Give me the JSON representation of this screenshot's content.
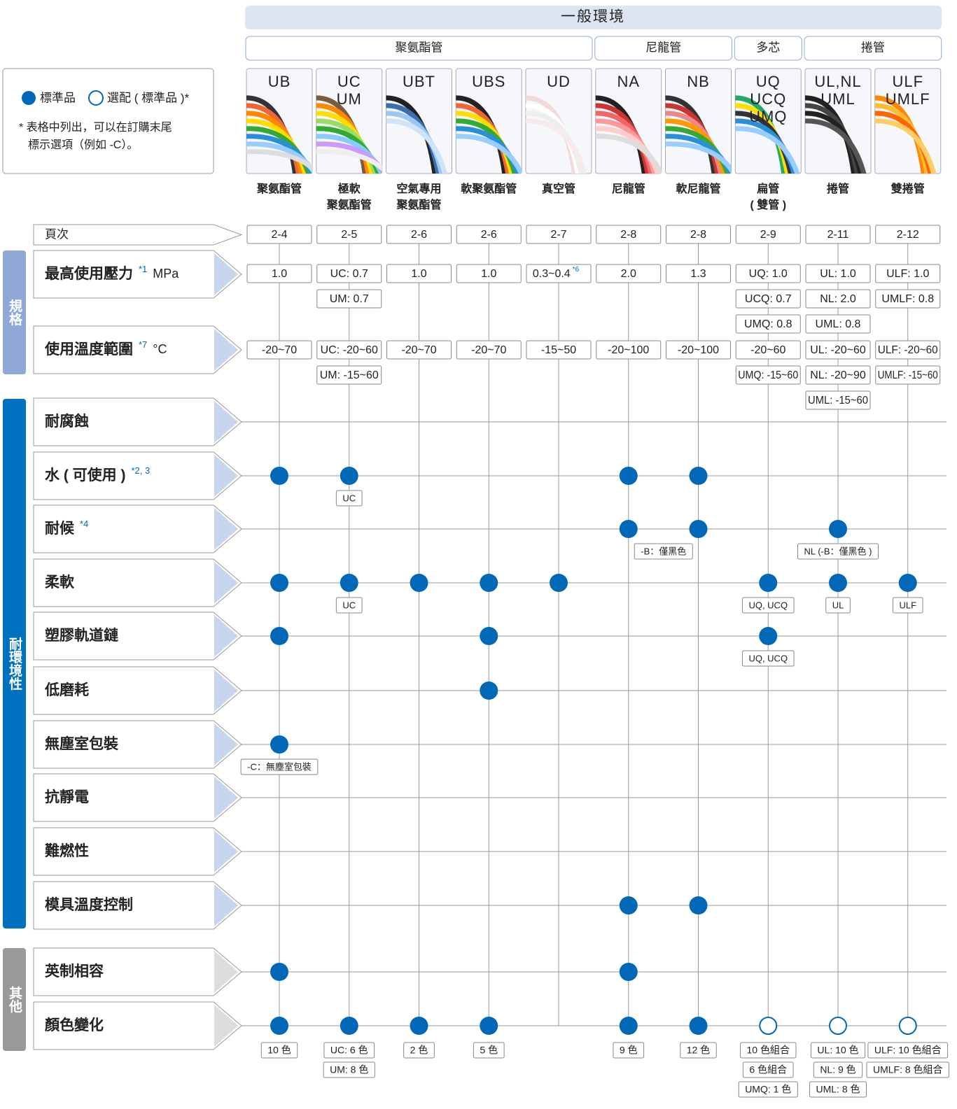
{
  "header": {
    "title": "一般環境"
  },
  "groups": [
    "聚氨酯管",
    "尼龍管",
    "多芯",
    "捲管"
  ],
  "legend": {
    "standard": "標準品",
    "optional": "選配 ( 標準品 )*",
    "note_lines": [
      "* 表格中列出，可以在訂購末尾",
      "標示選項（例如 -C）。"
    ]
  },
  "products": [
    {
      "code": [
        "UB"
      ],
      "name": [
        "聚氨酯管"
      ],
      "page": "2-4"
    },
    {
      "code": [
        "UC",
        "UM"
      ],
      "name": [
        "極軟",
        "聚氨酯管"
      ],
      "page": "2-5"
    },
    {
      "code": [
        "UBT"
      ],
      "name": [
        "空氣專用",
        "聚氨酯管"
      ],
      "page": "2-6"
    },
    {
      "code": [
        "UBS"
      ],
      "name": [
        "軟聚氨酯管"
      ],
      "page": "2-6"
    },
    {
      "code": [
        "UD"
      ],
      "name": [
        "真空管"
      ],
      "page": "2-7"
    },
    {
      "code": [
        "NA"
      ],
      "name": [
        "尼龍管"
      ],
      "page": "2-8"
    },
    {
      "code": [
        "NB"
      ],
      "name": [
        "軟尼龍管"
      ],
      "page": "2-8"
    },
    {
      "code": [
        "UQ",
        "UCQ",
        "UMQ"
      ],
      "name": [
        "扁管",
        "( 雙管 )"
      ],
      "page": "2-9"
    },
    {
      "code": [
        "UL,NL",
        "UML"
      ],
      "name": [
        "捲管"
      ],
      "page": "2-11"
    },
    {
      "code": [
        "ULF",
        "UMLF"
      ],
      "name": [
        "雙捲管"
      ],
      "page": "2-12"
    }
  ],
  "page_row": {
    "label": "頁次"
  },
  "categories": [
    {
      "label": "規格"
    },
    {
      "label": "耐環境性"
    },
    {
      "label": "其他"
    }
  ],
  "spec_rows": [
    {
      "label": "最高使用壓力",
      "note": "*1",
      "unit": "MPa",
      "cells": [
        [
          "1.0"
        ],
        [
          "UC: 0.7",
          "UM: 0.7"
        ],
        [
          "1.0"
        ],
        [
          "1.0"
        ],
        [
          {
            "text": "0.3~0.4",
            "note": "*6"
          }
        ],
        [
          "2.0"
        ],
        [
          "1.3"
        ],
        [
          "UQ: 1.0",
          "UCQ: 0.7",
          "UMQ: 0.8"
        ],
        [
          "UL: 1.0",
          "NL: 2.0",
          "UML: 0.8"
        ],
        [
          "ULF: 1.0",
          "UMLF: 0.8"
        ]
      ]
    },
    {
      "label": "使用溫度範圍",
      "note": "*7",
      "unit": "°C",
      "cells": [
        [
          "-20~70"
        ],
        [
          "UC: -20~60",
          "UM: -15~60"
        ],
        [
          "-20~70"
        ],
        [
          "-20~70"
        ],
        [
          "-15~50"
        ],
        [
          "-20~100"
        ],
        [
          "-20~100"
        ],
        [
          "-20~60",
          "UMQ: -15~60"
        ],
        [
          "UL: -20~60",
          "NL: -20~90",
          "UML: -15~60"
        ],
        [
          "ULF: -20~60",
          "UMLF: -15~60"
        ]
      ]
    }
  ],
  "feature_rows": [
    {
      "label": "耐腐蝕",
      "marks": [
        null,
        null,
        null,
        null,
        null,
        null,
        null,
        null,
        null,
        null
      ],
      "notes": [
        null,
        null,
        null,
        null,
        null,
        null,
        null,
        null,
        null,
        null
      ]
    },
    {
      "label": "水 ( 可使用 )",
      "note": "*2, 3",
      "marks": [
        "std",
        "std",
        null,
        null,
        null,
        "std",
        "std",
        null,
        null,
        null
      ],
      "notes": [
        null,
        "UC",
        null,
        null,
        null,
        null,
        null,
        null,
        null,
        null
      ]
    },
    {
      "label": "耐候",
      "note": "*4",
      "marks": [
        null,
        null,
        null,
        null,
        null,
        "std",
        "std",
        null,
        "std",
        null
      ],
      "notes": [
        null,
        null,
        null,
        null,
        null,
        "-B：僅黑色",
        null,
        null,
        "NL (-B：僅黑色 )",
        null
      ]
    },
    {
      "label": "柔軟",
      "marks": [
        "std",
        "std",
        "std",
        "std",
        "std",
        null,
        null,
        "std",
        "std",
        "std"
      ],
      "notes": [
        null,
        "UC",
        null,
        null,
        null,
        null,
        null,
        "UQ, UCQ",
        "UL",
        "ULF"
      ]
    },
    {
      "label": "塑膠軌道鏈",
      "marks": [
        "std",
        null,
        null,
        "std",
        null,
        null,
        null,
        "std",
        null,
        null
      ],
      "notes": [
        null,
        null,
        null,
        null,
        null,
        null,
        null,
        "UQ, UCQ",
        null,
        null
      ]
    },
    {
      "label": "低磨耗",
      "marks": [
        null,
        null,
        null,
        "std",
        null,
        null,
        null,
        null,
        null,
        null
      ],
      "notes": [
        null,
        null,
        null,
        null,
        null,
        null,
        null,
        null,
        null,
        null
      ]
    },
    {
      "label": "無塵室包裝",
      "marks": [
        "std",
        null,
        null,
        null,
        null,
        null,
        null,
        null,
        null,
        null
      ],
      "notes": [
        "-C：無塵室包裝",
        null,
        null,
        null,
        null,
        null,
        null,
        null,
        null,
        null
      ]
    },
    {
      "label": "抗靜電",
      "marks": [
        null,
        null,
        null,
        null,
        null,
        null,
        null,
        null,
        null,
        null
      ],
      "notes": [
        null,
        null,
        null,
        null,
        null,
        null,
        null,
        null,
        null,
        null
      ]
    },
    {
      "label": "難燃性",
      "marks": [
        null,
        null,
        null,
        null,
        null,
        null,
        null,
        null,
        null,
        null
      ],
      "notes": [
        null,
        null,
        null,
        null,
        null,
        null,
        null,
        null,
        null,
        null
      ]
    },
    {
      "label": "模具溫度控制",
      "marks": [
        null,
        null,
        null,
        null,
        null,
        "std",
        "std",
        null,
        null,
        null
      ],
      "notes": [
        null,
        null,
        null,
        null,
        null,
        null,
        null,
        null,
        null,
        null
      ]
    }
  ],
  "other_rows": [
    {
      "label": "英制相容",
      "marks": [
        "std",
        null,
        null,
        null,
        null,
        "std",
        null,
        null,
        null,
        null
      ],
      "notes": [
        null,
        null,
        null,
        null,
        null,
        null,
        null,
        null,
        null,
        null
      ]
    },
    {
      "label": "顏色變化",
      "marks": [
        "std",
        "std",
        "std",
        "std",
        null,
        "std",
        "std",
        "opt",
        "opt",
        "opt"
      ],
      "notes": [
        [
          "10 色"
        ],
        [
          "UC: 6 色",
          "UM: 8 色"
        ],
        [
          "2 色"
        ],
        [
          "5 色"
        ],
        null,
        [
          "9 色"
        ],
        [
          "12 色"
        ],
        [
          "10 色組合",
          "6 色組合",
          "UMQ: 1 色"
        ],
        [
          "UL: 10 色",
          "NL: 9 色",
          "UML: 8 色"
        ],
        [
          "ULF: 10 色組合",
          "UMLF: 8 色組合"
        ]
      ]
    }
  ]
}
